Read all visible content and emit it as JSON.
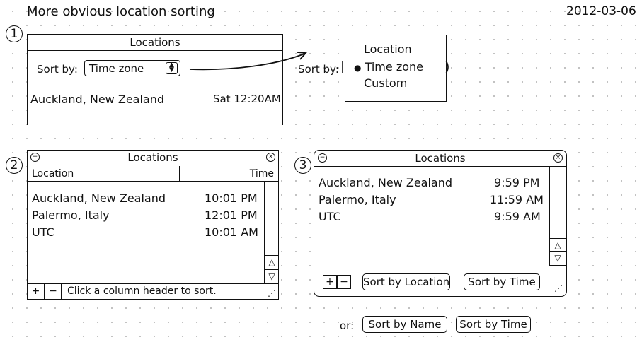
{
  "page": {
    "title": "More obvious location sorting",
    "date": "2012-03-06",
    "or_label": "or:",
    "alt_buttons": [
      "Sort by Name",
      "Sort by Time"
    ]
  },
  "sketch1": {
    "number": "1",
    "window_title": "Locations",
    "sort_label": "Sort by:",
    "sort_value": "Time zone",
    "row": {
      "location": "Auckland, New Zealand",
      "time": "Sat 12:20AM"
    },
    "popup": {
      "label": "Sort by:",
      "options": [
        "Location",
        "Time zone",
        "Custom"
      ],
      "selected_index": 1
    }
  },
  "sketch2": {
    "number": "2",
    "window_title": "Locations",
    "columns": [
      "Location",
      "Time"
    ],
    "rows": [
      {
        "location": "Auckland, New Zealand",
        "time": "10:01 PM"
      },
      {
        "location": "Palermo, Italy",
        "time": "12:01 PM"
      },
      {
        "location": "UTC",
        "time": "10:01 AM"
      }
    ],
    "add_label": "+",
    "remove_label": "−",
    "status": "Click a column header to sort."
  },
  "sketch3": {
    "number": "3",
    "window_title": "Locations",
    "rows": [
      {
        "location": "Auckland, New Zealand",
        "time": "9:59 PM"
      },
      {
        "location": "Palermo, Italy",
        "time": "11:59 AM"
      },
      {
        "location": "UTC",
        "time": "9:59 AM"
      }
    ],
    "add_label": "+",
    "remove_label": "−",
    "sort_location_label": "Sort by Location",
    "sort_time_label": "Sort by Time"
  }
}
